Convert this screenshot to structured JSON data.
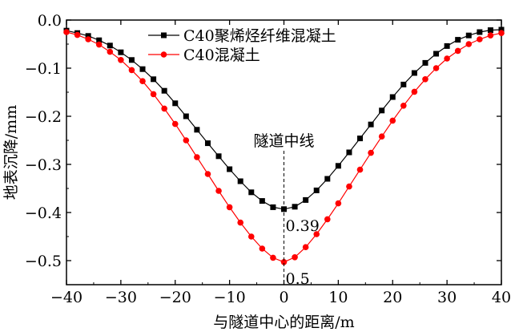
{
  "chart_data": {
    "type": "line",
    "title": "",
    "xlabel": "与隧道中心的距离/m",
    "ylabel": "地表沉降/mm",
    "xlim": [
      -40,
      40
    ],
    "ylim": [
      -0.55,
      0
    ],
    "xticks": [
      -40,
      -30,
      -20,
      -10,
      0,
      10,
      20,
      30,
      40
    ],
    "yticks": [
      0.0,
      -0.1,
      -0.2,
      -0.3,
      -0.4,
      -0.5
    ],
    "ytick_labels": [
      "0.0",
      "−0.1",
      "−0.2",
      "−0.3",
      "−0.4",
      "−0.5"
    ],
    "xtick_labels": [
      "−40",
      "−30",
      "−20",
      "−10",
      "0",
      "10",
      "20",
      "30",
      "40"
    ],
    "legend_position": "top-center",
    "series": [
      {
        "name": "C40聚烯烃纤维混凝土",
        "marker": "square",
        "color": "#000000",
        "x": [
          -40,
          -38,
          -36,
          -34,
          -32,
          -30,
          -28,
          -26,
          -24,
          -22,
          -20,
          -18,
          -16,
          -14,
          -12,
          -10,
          -8,
          -6,
          -4,
          -2,
          0,
          2,
          4,
          6,
          8,
          10,
          12,
          14,
          16,
          18,
          20,
          22,
          24,
          26,
          28,
          30,
          32,
          34,
          36,
          38,
          40
        ],
        "y": [
          -0.022,
          -0.027,
          -0.033,
          -0.042,
          -0.053,
          -0.067,
          -0.083,
          -0.102,
          -0.123,
          -0.147,
          -0.173,
          -0.2,
          -0.228,
          -0.256,
          -0.283,
          -0.31,
          -0.335,
          -0.358,
          -0.376,
          -0.389,
          -0.393,
          -0.388,
          -0.374,
          -0.354,
          -0.33,
          -0.303,
          -0.275,
          -0.246,
          -0.217,
          -0.188,
          -0.16,
          -0.134,
          -0.11,
          -0.089,
          -0.07,
          -0.054,
          -0.041,
          -0.032,
          -0.025,
          -0.021,
          -0.02
        ]
      },
      {
        "name": "C40混凝土",
        "marker": "circle",
        "color": "#ff0000",
        "x": [
          -40,
          -38,
          -36,
          -34,
          -32,
          -30,
          -28,
          -26,
          -24,
          -22,
          -20,
          -18,
          -16,
          -14,
          -12,
          -10,
          -8,
          -6,
          -4,
          -2,
          0,
          2,
          4,
          6,
          8,
          10,
          12,
          14,
          16,
          18,
          20,
          22,
          24,
          26,
          28,
          30,
          32,
          34,
          36,
          38,
          40
        ],
        "y": [
          -0.025,
          -0.031,
          -0.04,
          -0.051,
          -0.066,
          -0.083,
          -0.104,
          -0.127,
          -0.154,
          -0.184,
          -0.216,
          -0.25,
          -0.285,
          -0.32,
          -0.355,
          -0.389,
          -0.421,
          -0.45,
          -0.475,
          -0.494,
          -0.503,
          -0.493,
          -0.472,
          -0.445,
          -0.414,
          -0.381,
          -0.346,
          -0.311,
          -0.276,
          -0.242,
          -0.209,
          -0.178,
          -0.149,
          -0.123,
          -0.1,
          -0.08,
          -0.064,
          -0.05,
          -0.04,
          -0.032,
          -0.027
        ]
      }
    ],
    "annotations": [
      {
        "text": "隧道中线",
        "x": 0
      },
      {
        "text": "0.39",
        "x": 0,
        "y": -0.393
      },
      {
        "text": "0.5",
        "x": 0,
        "y": -0.503
      }
    ]
  }
}
